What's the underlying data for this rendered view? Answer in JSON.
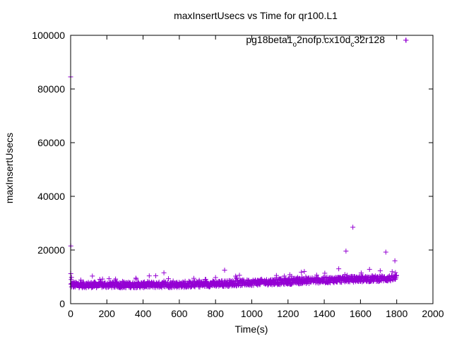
{
  "chart_data": {
    "type": "scatter",
    "title": "maxInsertUsecs vs Time for qr100.L1",
    "xlabel": "Time(s)",
    "ylabel": "maxInsertUsecs",
    "xlim": [
      0,
      2000
    ],
    "ylim": [
      0,
      100000
    ],
    "xticks": [
      0,
      200,
      400,
      600,
      800,
      1000,
      1200,
      1400,
      1600,
      1800,
      2000
    ],
    "yticks": [
      0,
      20000,
      40000,
      60000,
      80000,
      100000
    ],
    "grid": false,
    "legend_position": "top-right",
    "marker_color": "#9400d3",
    "marker": "plus",
    "series": [
      {
        "name_parts": [
          {
            "text": "pg18beta1",
            "sub": false
          },
          {
            "text": "o",
            "sub": true
          },
          {
            "text": "2nofp.cx10d",
            "sub": false
          },
          {
            "text": "c",
            "sub": true
          },
          {
            "text": "32r128",
            "sub": false
          }
        ],
        "base_trend": [
          [
            0,
            7000
          ],
          [
            200,
            7000
          ],
          [
            400,
            7000
          ],
          [
            600,
            7100
          ],
          [
            800,
            7400
          ],
          [
            1000,
            7900
          ],
          [
            1200,
            8300
          ],
          [
            1400,
            8800
          ],
          [
            1600,
            9200
          ],
          [
            1800,
            9500
          ]
        ],
        "points": [
          [
            0,
            84500
          ],
          [
            1,
            21500
          ],
          [
            1,
            11200
          ],
          [
            5,
            9800
          ],
          [
            3,
            9000
          ],
          [
            120,
            10300
          ],
          [
            360,
            9500
          ],
          [
            470,
            10400
          ],
          [
            515,
            11500
          ],
          [
            540,
            9300
          ],
          [
            850,
            12500
          ],
          [
            1180,
            10300
          ],
          [
            1210,
            10800
          ],
          [
            1290,
            12000
          ],
          [
            1480,
            13000
          ],
          [
            1520,
            19600
          ],
          [
            1558,
            28500
          ],
          [
            1650,
            12800
          ],
          [
            1740,
            19200
          ],
          [
            1790,
            16000
          ],
          [
            1850,
            98200
          ]
        ]
      }
    ]
  }
}
